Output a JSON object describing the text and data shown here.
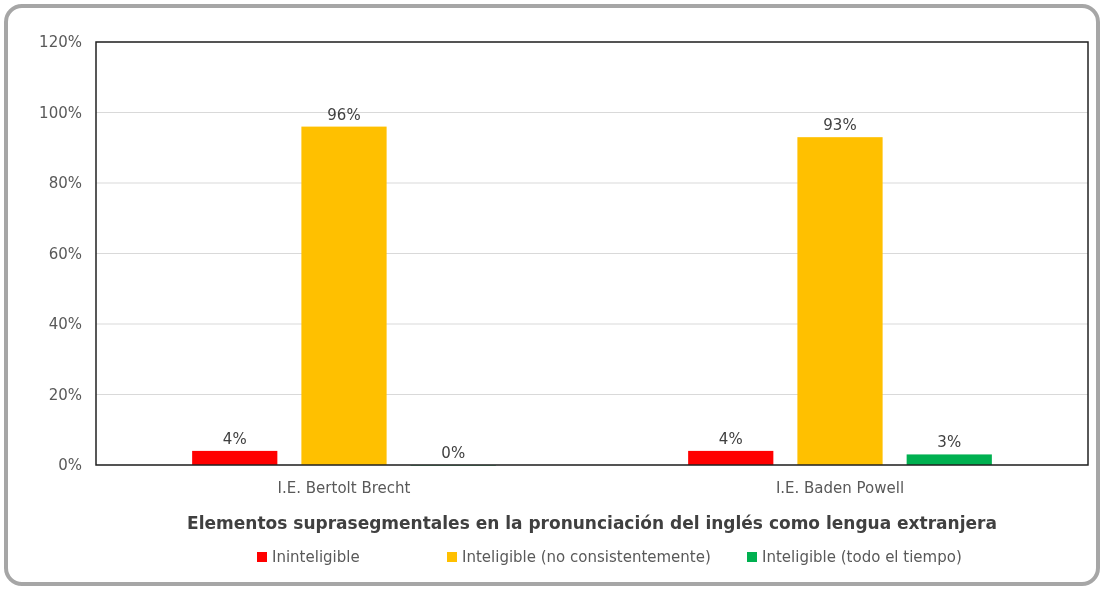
{
  "chart_data": {
    "type": "bar",
    "xlabel": "Elementos suprasegmentales en la pronunciación del inglés como lengua extranjera",
    "categories": [
      "I.E. Bertolt Brecht",
      "I.E. Baden Powell"
    ],
    "series": [
      {
        "name": "Ininteligible",
        "color": "#ff0000",
        "values": [
          4,
          4
        ],
        "value_labels": [
          "4%",
          "4%"
        ]
      },
      {
        "name": "Inteligible (no consistentemente)",
        "color": "#ffc000",
        "values": [
          96,
          93
        ],
        "value_labels": [
          "96%",
          "93%"
        ]
      },
      {
        "name": "Inteligible (todo el tiempo)",
        "color": "#00b050",
        "values": [
          0,
          3
        ],
        "value_labels": [
          "0%",
          "3%"
        ]
      }
    ],
    "ylim": [
      0,
      120
    ],
    "yticks": [
      {
        "value": 0,
        "label": "0%"
      },
      {
        "value": 20,
        "label": "20%"
      },
      {
        "value": 40,
        "label": "40%"
      },
      {
        "value": 60,
        "label": "60%"
      },
      {
        "value": 80,
        "label": "80%"
      },
      {
        "value": 100,
        "label": "100%"
      },
      {
        "value": 120,
        "label": "120%"
      }
    ],
    "grid": "y",
    "legend": "bottom"
  }
}
